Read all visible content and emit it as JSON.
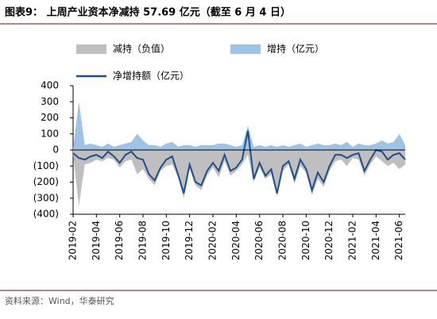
{
  "chart_data": {
    "type": "line",
    "title": "图表9：  上周产业资本净减持 57.69 亿元（截至 6 月 4 日）",
    "source": "资料来源：Wind，华泰研究",
    "categories": [
      "2019-02",
      null,
      null,
      null,
      "2019-04",
      null,
      null,
      null,
      "2019-06",
      null,
      null,
      null,
      "2019-08",
      null,
      null,
      null,
      "2019-10",
      null,
      null,
      null,
      "2019-12",
      null,
      null,
      null,
      "2020-02",
      null,
      null,
      null,
      "2020-04",
      null,
      null,
      null,
      "2020-06",
      null,
      null,
      null,
      "2020-08",
      null,
      null,
      null,
      "2020-10",
      null,
      null,
      null,
      "2020-12",
      null,
      null,
      null,
      "2021-02",
      null,
      null,
      null,
      "2021-04",
      null,
      null,
      null,
      "2021-06",
      null
    ],
    "series": [
      {
        "name": "减持（负值）",
        "color": "#bfbfbf",
        "kind": "area",
        "values": [
          -30,
          -350,
          -90,
          -80,
          -60,
          -70,
          -50,
          -60,
          -110,
          -70,
          -60,
          -150,
          -120,
          -180,
          -220,
          -130,
          -100,
          -90,
          -170,
          -300,
          -120,
          -220,
          -250,
          -160,
          -110,
          -170,
          -70,
          -160,
          -130,
          -90,
          -30,
          -200,
          -110,
          -180,
          -150,
          -290,
          -130,
          -90,
          -210,
          -100,
          -140,
          -280,
          -180,
          -230,
          -130,
          -70,
          -60,
          -100,
          -50,
          -60,
          -160,
          -90,
          -40,
          -70,
          -100,
          -80,
          -120,
          -90
        ]
      },
      {
        "name": "增持（亿元）",
        "color": "#9dc3e6",
        "kind": "area",
        "values": [
          10,
          300,
          30,
          40,
          30,
          20,
          40,
          20,
          30,
          40,
          50,
          100,
          60,
          30,
          30,
          20,
          40,
          50,
          20,
          30,
          30,
          20,
          30,
          30,
          30,
          40,
          40,
          30,
          20,
          30,
          150,
          20,
          30,
          20,
          30,
          20,
          30,
          20,
          30,
          40,
          20,
          30,
          40,
          30,
          30,
          40,
          30,
          50,
          20,
          40,
          30,
          30,
          40,
          60,
          40,
          50,
          100,
          30
        ]
      },
      {
        "name": "净增持额（亿元）",
        "color": "#1f4e8c",
        "kind": "line",
        "values": [
          -20,
          -50,
          -60,
          -40,
          -30,
          -50,
          -10,
          -40,
          -80,
          -30,
          -10,
          -50,
          -60,
          -150,
          -190,
          -110,
          -60,
          -40,
          -150,
          -270,
          -90,
          -200,
          -220,
          -130,
          -80,
          -130,
          -30,
          -130,
          -110,
          -60,
          120,
          -180,
          -80,
          -160,
          -120,
          -270,
          -100,
          -70,
          -180,
          -60,
          -120,
          -250,
          -140,
          -200,
          -100,
          -30,
          -30,
          -50,
          -30,
          -20,
          -130,
          -60,
          0,
          -10,
          -60,
          -30,
          -20,
          -60
        ]
      }
    ],
    "ylim": [
      -400,
      400
    ],
    "yticks": [
      {
        "value": -400,
        "label": "(400)"
      },
      {
        "value": -300,
        "label": "(300)"
      },
      {
        "value": -200,
        "label": "(200)"
      },
      {
        "value": -100,
        "label": "(100)"
      },
      0,
      100,
      200,
      300,
      400
    ]
  }
}
